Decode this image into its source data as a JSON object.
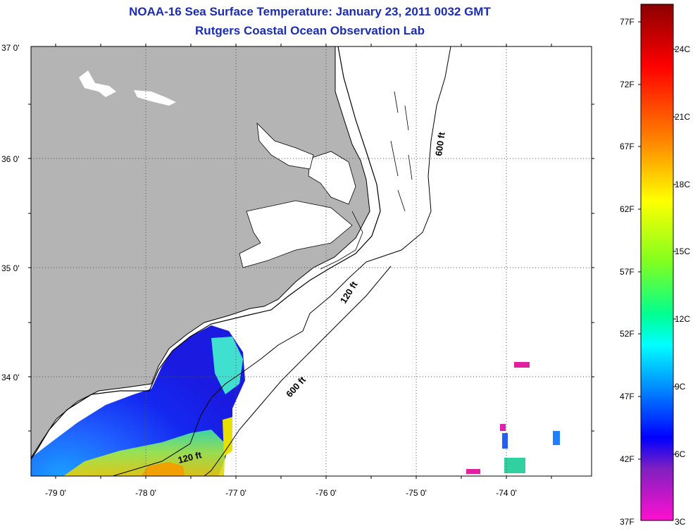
{
  "title": {
    "line1": "NOAA-16 Sea Surface Temperature:  January 23, 2011 0032 GMT",
    "line2": "Rutgers Coastal Ocean Observation Lab"
  },
  "map": {
    "lat_labels": [
      "37 0'",
      "36 0'",
      "35 0'",
      "34 0'"
    ],
    "lon_labels": [
      "-79 0'",
      "-78 0'",
      "-77 0'",
      "-76 0'",
      "-75 0'",
      "-74 0'"
    ],
    "contour_labels": [
      "600 ft",
      "120 ft",
      "600 ft",
      "120 ft"
    ],
    "colors": {
      "land": "#b4b4b4",
      "ocean_no_data": "#ffffff",
      "title": "#1a2db4"
    }
  },
  "colorbar": {
    "fahrenheit_labels": [
      "77F",
      "72F",
      "67F",
      "62F",
      "57F",
      "52F",
      "47F",
      "42F",
      "37F"
    ],
    "celsius_labels": [
      "24C",
      "21C",
      "18C",
      "15C",
      "12C",
      "9C",
      "6C",
      "3C"
    ],
    "colors_top_to_bottom": [
      "#8b0000",
      "#ff0000",
      "#ff8000",
      "#ffff00",
      "#80ff00",
      "#00ff80",
      "#00ffff",
      "#0080ff",
      "#0000ff",
      "#8000c0",
      "#ff00c0"
    ]
  }
}
